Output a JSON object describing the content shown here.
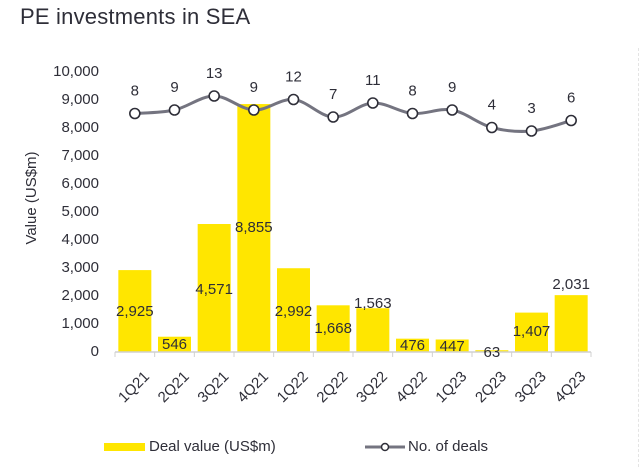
{
  "title": "PE investments in SEA",
  "colors": {
    "bar": "#FFE600",
    "line": "#747480",
    "marker_fill": "#FFFFFF",
    "marker_stroke": "#2E2E38",
    "text": "#2E2E38",
    "axis": "#D0D0D0"
  },
  "chart_data": {
    "type": "bar",
    "title": "PE investments in SEA",
    "xlabel": "",
    "ylabel": "Value (US$m)",
    "ylim": [
      0,
      10000
    ],
    "yticks": [
      0,
      1000,
      2000,
      3000,
      4000,
      5000,
      6000,
      7000,
      8000,
      9000,
      10000
    ],
    "ytick_labels": [
      "0",
      "1,000",
      "2,000",
      "3,000",
      "4,000",
      "5,000",
      "6,000",
      "7,000",
      "8,000",
      "9,000",
      "10,000"
    ],
    "grid": false,
    "categories": [
      "1Q21",
      "2Q21",
      "3Q21",
      "4Q21",
      "1Q22",
      "2Q22",
      "3Q22",
      "4Q22",
      "1Q23",
      "2Q23",
      "3Q23",
      "4Q23"
    ],
    "series": [
      {
        "name": "Deal value (US$m)",
        "type": "bar",
        "axis": "primary",
        "values": [
          2925,
          546,
          4571,
          8855,
          2992,
          1668,
          1563,
          476,
          447,
          63,
          1407,
          2031
        ],
        "labels": [
          "2,925",
          "546",
          "4,571",
          "8,855",
          "2,992",
          "1,668",
          "1,563",
          "476",
          "447",
          "63",
          "1,407",
          "2,031"
        ]
      },
      {
        "name": "No. of deals",
        "type": "line",
        "axis": "secondary (hidden)",
        "smooth": true,
        "marker": "circle",
        "values": [
          8,
          9,
          13,
          9,
          12,
          7,
          11,
          8,
          9,
          4,
          3,
          6
        ],
        "labels": [
          "8",
          "9",
          "13",
          "9",
          "12",
          "7",
          "11",
          "8",
          "9",
          "4",
          "3",
          "6"
        ]
      }
    ],
    "legend": {
      "placement": "bottom",
      "entries": [
        "Deal value (US$m)",
        "No. of deals"
      ]
    }
  }
}
